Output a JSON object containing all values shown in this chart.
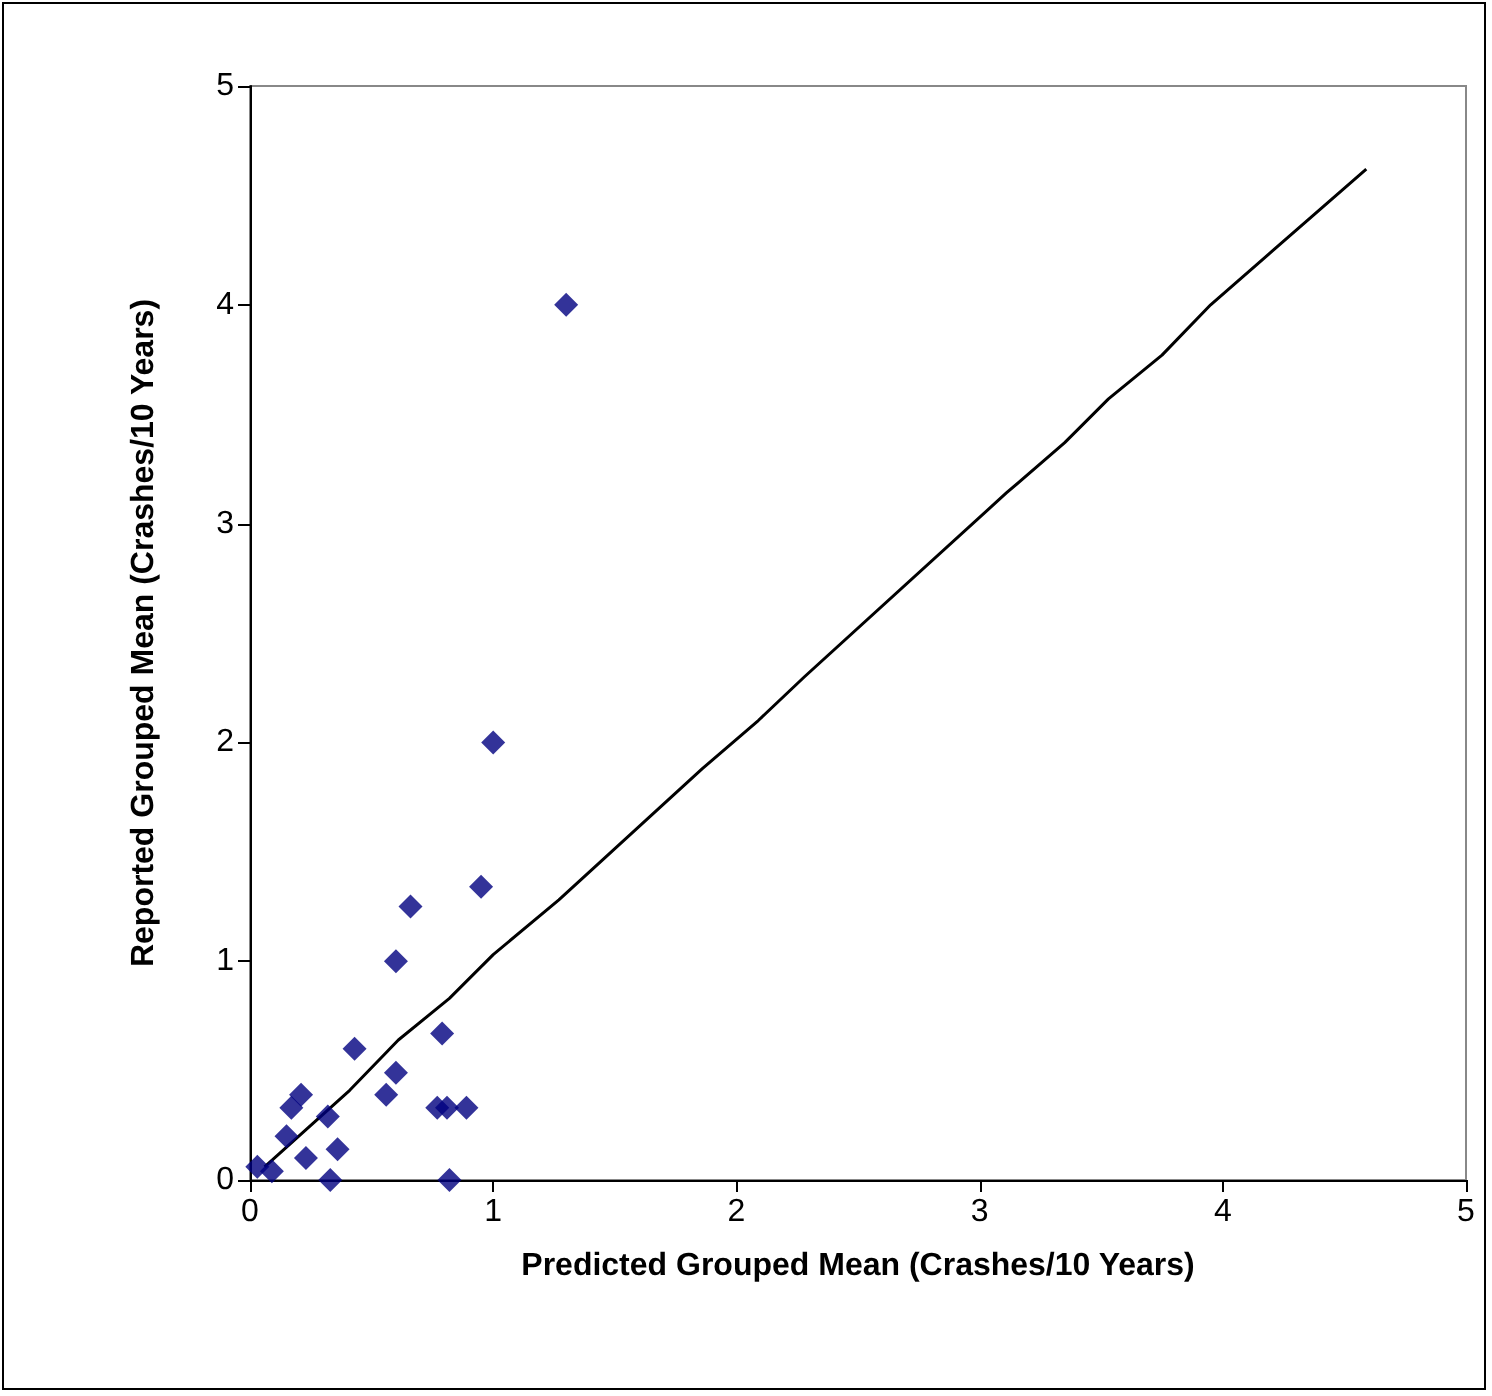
{
  "chart_data": {
    "type": "scatter",
    "xlabel": "Predicted Grouped Mean (Crashes/10 Years)",
    "ylabel": "Reported Grouped Mean (Crashes/10 Years)",
    "xlim": [
      0,
      5
    ],
    "ylim": [
      0,
      5
    ],
    "xticks": [
      0,
      1,
      2,
      3,
      4,
      5
    ],
    "yticks": [
      0,
      1,
      2,
      3,
      4,
      5
    ],
    "grid": false,
    "series": [
      {
        "color": "#000080",
        "marker": "diamond",
        "x": [
          0.03,
          0.09,
          0.15,
          0.17,
          0.21,
          0.23,
          0.32,
          0.33,
          0.36,
          0.43,
          0.56,
          0.6,
          0.6,
          0.66,
          0.79,
          0.77,
          0.81,
          0.89,
          0.82,
          0.95,
          1.0,
          1.3
        ],
        "values": [
          0.06,
          0.04,
          0.2,
          0.33,
          0.39,
          0.1,
          0.29,
          0,
          0.14,
          0.6,
          0.39,
          0.49,
          1.0,
          1.25,
          0.67,
          0.33,
          0.33,
          0.33,
          0,
          1.34,
          2.0,
          4.0
        ]
      },
      {
        "type": "line",
        "color": "#000000",
        "marker": "none",
        "line_style": "solid",
        "x": [
          0.06,
          0.41,
          0.61,
          0.82,
          1.0,
          1.27,
          1.86,
          2.09,
          2.28,
          3.11,
          3.35,
          3.53,
          3.75,
          3.95,
          4.59
        ],
        "values": [
          0.06,
          0.41,
          0.64,
          0.83,
          1.03,
          1.28,
          1.88,
          2.1,
          2.3,
          3.14,
          3.37,
          3.57,
          3.77,
          4.0,
          4.62
        ]
      }
    ]
  }
}
